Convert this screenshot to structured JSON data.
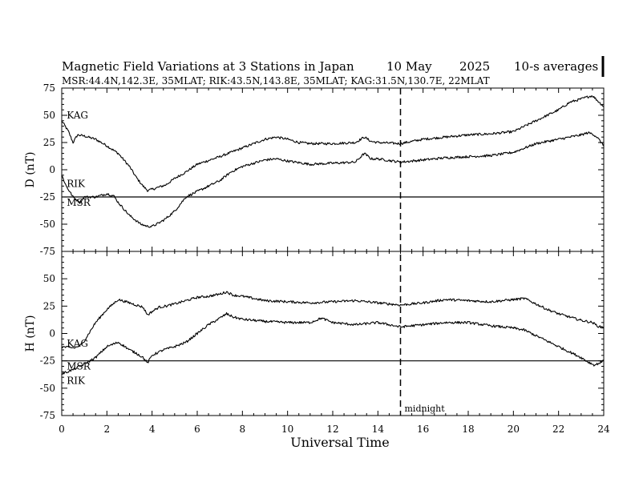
{
  "chart_data": {
    "type": "line",
    "title": "Magnetic Field Variations at 3 Stations in Japan",
    "date": "10 May",
    "year": "2025",
    "averaging": "10-s averages",
    "subtitle": "MSR:44.4N,142.3E, 35MLAT;  RIK:43.5N,143.8E, 35MLAT;  KAG:31.5N,130.7E, 22MLAT",
    "xlabel": "Universal Time",
    "xlim": [
      0,
      24
    ],
    "x_ticks": [
      "0",
      "2",
      "4",
      "6",
      "8",
      "10",
      "12",
      "14",
      "16",
      "18",
      "20",
      "22",
      "24"
    ],
    "midnight": {
      "x": 15,
      "label": "midnight"
    },
    "panels": [
      {
        "ylabel": "D (nT)",
        "ylim": [
          -75,
          75
        ],
        "y_ticks": [
          "75",
          "50",
          "25",
          "0",
          "-25",
          "-50",
          "-75"
        ],
        "baseline": -25,
        "labels": [
          {
            "text": "KAG",
            "x": 0.15,
            "y": 50
          },
          {
            "text": "RIK",
            "x": 0.15,
            "y": -13
          },
          {
            "text": "MSR",
            "x": 0.15,
            "y": -30
          }
        ],
        "series": [
          {
            "name": "KAG",
            "x": [
              0,
              0.3,
              0.5,
              0.7,
              1.0,
              1.5,
              2.0,
              2.5,
              3.0,
              3.3,
              3.6,
              3.8,
              4.0,
              4.3,
              4.6,
              5.0,
              5.5,
              6.0,
              7.0,
              8.0,
              9.0,
              9.5,
              10.0,
              10.5,
              11.0,
              12.0,
              13.0,
              13.4,
              13.7,
              14.0,
              15.0,
              16.0,
              17.0,
              18.0,
              19.0,
              20.0,
              20.5,
              21.0,
              21.5,
              22.0,
              22.5,
              23.0,
              23.3,
              23.5,
              23.7,
              24.0
            ],
            "values": [
              45,
              35,
              25,
              32,
              31,
              28,
              22,
              15,
              3,
              -7,
              -15,
              -19,
              -18,
              -16,
              -14,
              -8,
              -2,
              5,
              12,
              20,
              28,
              30,
              28,
              25,
              24,
              24,
              25,
              30,
              26,
              25,
              24,
              28,
              30,
              32,
              33,
              35,
              40,
              45,
              50,
              55,
              62,
              65,
              67,
              68,
              64,
              58
            ]
          },
          {
            "name": "RIK",
            "x": [
              0,
              0.2,
              0.5,
              0.8,
              1.0,
              1.5,
              2.0,
              2.3,
              2.5,
              3.0,
              3.5,
              3.8,
              4.0,
              4.3,
              4.6,
              5.0,
              5.5,
              6.0,
              6.5,
              7.0,
              7.5,
              8.0,
              9.0,
              9.5,
              10.0,
              11.0,
              12.0,
              13.0,
              13.4,
              13.7,
              14.0,
              15.0,
              16.0,
              17.0,
              18.0,
              19.0,
              20.0,
              20.5,
              21.0,
              21.5,
              22.0,
              22.5,
              23.0,
              23.3,
              23.5,
              23.7,
              24.0
            ],
            "values": [
              -5,
              -15,
              -25,
              -30,
              -25,
              -25,
              -22,
              -24,
              -30,
              -42,
              -50,
              -52,
              -52,
              -49,
              -45,
              -38,
              -25,
              -20,
              -15,
              -10,
              -2,
              3,
              9,
              10,
              8,
              5,
              6,
              7,
              15,
              10,
              10,
              7,
              9,
              11,
              12,
              13,
              16,
              20,
              24,
              26,
              28,
              30,
              32,
              34,
              33,
              30,
              22
            ]
          }
        ]
      },
      {
        "ylabel": "H (nT)",
        "ylim": [
          -75,
          75
        ],
        "y_ticks": [
          "",
          "50",
          "25",
          "0",
          "-25",
          "-50",
          "-75"
        ],
        "baseline": -25,
        "labels": [
          {
            "text": "KAG",
            "x": 0.15,
            "y": -9
          },
          {
            "text": "MSR",
            "x": 0.15,
            "y": -30
          },
          {
            "text": "RIK",
            "x": 0.15,
            "y": -43
          }
        ],
        "series": [
          {
            "name": "KAG",
            "x": [
              0,
              0.3,
              0.6,
              0.9,
              1.2,
              1.5,
              2.0,
              2.5,
              3.0,
              3.3,
              3.6,
              3.8,
              4.0,
              4.3,
              4.6,
              5.0,
              5.5,
              6.0,
              6.5,
              7.0,
              7.3,
              7.6,
              8.0,
              9.0,
              10.0,
              11.0,
              12.0,
              13.0,
              14.0,
              15.0,
              16.0,
              17.0,
              18.0,
              19.0,
              20.0,
              20.5,
              21.0,
              21.5,
              22.0,
              22.5,
              23.0,
              23.5,
              23.8,
              24.0
            ],
            "values": [
              -12,
              -13,
              -13,
              -10,
              0,
              10,
              22,
              31,
              28,
              26,
              24,
              17,
              20,
              24,
              25,
              27,
              30,
              33,
              34,
              36,
              38,
              35,
              34,
              30,
              29,
              28,
              29,
              30,
              28,
              26,
              28,
              31,
              30,
              29,
              31,
              32,
              27,
              22,
              18,
              15,
              12,
              10,
              6,
              6
            ]
          },
          {
            "name": "MSR",
            "x": [
              0,
              0.5,
              1.0,
              1.5,
              2.0,
              2.5,
              2.8,
              3.0,
              3.3,
              3.6,
              3.8,
              4.0,
              4.5,
              5.0,
              5.5,
              6.0,
              6.5,
              7.0,
              7.3,
              7.6,
              8.0,
              9.0,
              10.0,
              11.0,
              11.5,
              12.0,
              13.0,
              14.0,
              15.0,
              16.0,
              17.0,
              18.0,
              19.0,
              20.0,
              20.5,
              21.0,
              21.5,
              22.0,
              22.5,
              23.0,
              23.3,
              23.6,
              24.0
            ],
            "values": [
              -37,
              -33,
              -28,
              -22,
              -12,
              -8,
              -12,
              -15,
              -18,
              -22,
              -27,
              -20,
              -15,
              -12,
              -8,
              0,
              8,
              14,
              18,
              15,
              13,
              11,
              10,
              10,
              14,
              10,
              8,
              10,
              6,
              8,
              10,
              10,
              7,
              5,
              3,
              -2,
              -7,
              -12,
              -17,
              -22,
              -26,
              -29,
              -25
            ]
          }
        ]
      }
    ],
    "grid": false,
    "line_color": "#000000"
  }
}
